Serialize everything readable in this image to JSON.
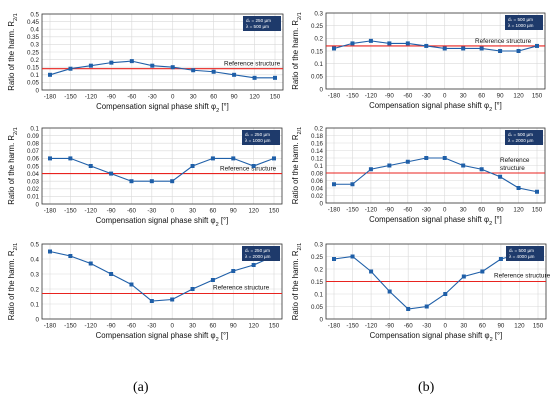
{
  "chart_data": [
    {
      "type": "line",
      "panel": "a-top",
      "ylabel": "Ratio of the harm. R",
      "ylabel_sub": "2/1",
      "xlabel": "Compensation signal phase shift φ",
      "xlabel_sub": "2",
      "xlabel_unit": " [°]",
      "x": [
        -180,
        -150,
        -120,
        -90,
        -60,
        -30,
        0,
        30,
        60,
        90,
        120,
        150
      ],
      "ylim": [
        0,
        0.5
      ],
      "yticks": [
        "0",
        "0.05",
        "0.1",
        "0.15",
        "0.2",
        "0.25",
        "0.3",
        "0.35",
        "0.4",
        "0.45",
        "0.5"
      ],
      "series": [
        {
          "values": [
            0.1,
            0.14,
            0.16,
            0.18,
            0.19,
            0.16,
            0.15,
            0.13,
            0.12,
            0.1,
            0.08,
            0.08
          ]
        }
      ],
      "reference": {
        "label": "Reference structure",
        "value": 0.14
      },
      "legend": [
        "dₛ = 250 µm",
        "λ = 500 µm"
      ]
    },
    {
      "type": "line",
      "panel": "b-top",
      "ylabel": "Ratio of the harm. R",
      "ylabel_sub": "2/1",
      "xlabel": "Compensation signal phase shift φ",
      "xlabel_sub": "2",
      "xlabel_unit": " [°]",
      "x": [
        -180,
        -150,
        -120,
        -90,
        -60,
        -30,
        0,
        30,
        60,
        90,
        120,
        150
      ],
      "ylim": [
        0,
        0.3
      ],
      "yticks": [
        "0",
        "0.05",
        "0.1",
        "0.15",
        "0.2",
        "0.25",
        "0.3"
      ],
      "series": [
        {
          "values": [
            0.16,
            0.18,
            0.19,
            0.18,
            0.18,
            0.17,
            0.16,
            0.16,
            0.16,
            0.15,
            0.15,
            0.17
          ]
        }
      ],
      "reference": {
        "label": "Reference structure",
        "value": 0.17
      },
      "legend": [
        "dₛ = 500 µm",
        "λ = 1000 µm"
      ]
    },
    {
      "type": "line",
      "panel": "a-mid",
      "ylabel": "Ratio of the harm. R",
      "ylabel_sub": "2/1",
      "xlabel": "Compensation signal phase shift φ",
      "xlabel_sub": "2",
      "xlabel_unit": " [°]",
      "x": [
        -180,
        -150,
        -120,
        -90,
        -60,
        -30,
        0,
        30,
        60,
        90,
        120,
        150
      ],
      "ylim": [
        0,
        0.1
      ],
      "yticks": [
        "0",
        "0.01",
        "0.02",
        "0.03",
        "0.04",
        "0.05",
        "0.06",
        "0.07",
        "0.08",
        "0.09",
        "0.1"
      ],
      "series": [
        {
          "values": [
            0.06,
            0.06,
            0.05,
            0.04,
            0.03,
            0.03,
            0.03,
            0.05,
            0.06,
            0.06,
            0.05,
            0.06
          ]
        }
      ],
      "reference": {
        "label": "Reference structure",
        "value": 0.04
      },
      "legend": [
        "dₛ = 250 µm",
        "λ = 1000 µm"
      ]
    },
    {
      "type": "line",
      "panel": "b-mid",
      "ylabel": "Ratio of the harm. R",
      "ylabel_sub": "2/1",
      "xlabel": "Compensation signal phase shift φ",
      "xlabel_sub": "2",
      "xlabel_unit": " [°]",
      "x": [
        -180,
        -150,
        -120,
        -90,
        -60,
        -30,
        0,
        30,
        60,
        90,
        120,
        150
      ],
      "ylim": [
        0,
        0.2
      ],
      "yticks": [
        "0",
        "0.02",
        "0.04",
        "0.06",
        "0.08",
        "0.1",
        "0.12",
        "0.14",
        "0.16",
        "0.18",
        "0.2"
      ],
      "series": [
        {
          "values": [
            0.05,
            0.05,
            0.09,
            0.1,
            0.11,
            0.12,
            0.12,
            0.1,
            0.09,
            0.07,
            0.04,
            0.03
          ]
        }
      ],
      "reference": {
        "label": "Reference structure",
        "value": 0.08
      },
      "legend": [
        "dₛ = 500 µm",
        "λ = 2000 µm"
      ]
    },
    {
      "type": "line",
      "panel": "a-bot",
      "ylabel": "Ratio of the harm. R",
      "ylabel_sub": "2/1",
      "xlabel": "Compensation signal phase shift φ",
      "xlabel_sub": "2",
      "xlabel_unit": " [°]",
      "x": [
        -180,
        -150,
        -120,
        -90,
        -60,
        -30,
        0,
        30,
        60,
        90,
        120,
        150
      ],
      "ylim": [
        0,
        0.5
      ],
      "yticks": [
        "0",
        "0.1",
        "0.2",
        "0.3",
        "0.4",
        "0.5"
      ],
      "series": [
        {
          "values": [
            0.45,
            0.42,
            0.37,
            0.3,
            0.23,
            0.12,
            0.13,
            0.2,
            0.26,
            0.32,
            0.36,
            0.42
          ]
        }
      ],
      "reference": {
        "label": "Reference structure",
        "value": 0.17
      },
      "legend": [
        "dₛ = 250 µm",
        "λ = 2000 µm"
      ]
    },
    {
      "type": "line",
      "panel": "b-bot",
      "ylabel": "Ratio of the harm. R",
      "ylabel_sub": "2/1",
      "xlabel": "Compensation signal phase shift φ",
      "xlabel_sub": "2",
      "xlabel_unit": " [°]",
      "x": [
        -180,
        -150,
        -120,
        -90,
        -60,
        -30,
        0,
        30,
        60,
        90,
        120,
        150
      ],
      "ylim": [
        0,
        0.3
      ],
      "yticks": [
        "0",
        "0.05",
        "0.1",
        "0.15",
        "0.2",
        "0.25",
        "0.3"
      ],
      "series": [
        {
          "values": [
            0.24,
            0.25,
            0.19,
            0.11,
            0.04,
            0.05,
            0.1,
            0.17,
            0.19,
            0.24,
            0.26,
            0.25
          ]
        }
      ],
      "reference": {
        "label": "Reference structure",
        "value": 0.15
      },
      "legend": [
        "dₛ = 500 µm",
        "λ = 4000 µm"
      ]
    }
  ],
  "colors": {
    "series": "#1f5fa8",
    "reference": "#e8231f",
    "legend_box": "#1e3a6b",
    "axis": "#333333",
    "grid": "#d9d9d9"
  },
  "labels": {
    "left": "(a)",
    "right": "(b)"
  }
}
